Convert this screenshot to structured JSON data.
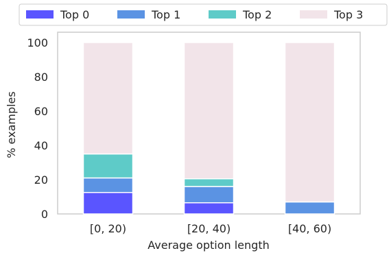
{
  "chart_data": {
    "type": "bar",
    "stacked": true,
    "categories": [
      "[0, 20)",
      "[20, 40)",
      "[40, 60)"
    ],
    "series": [
      {
        "name": "Top 0",
        "color": "#5a55ff",
        "values": [
          12.5,
          6.5,
          0
        ]
      },
      {
        "name": "Top 1",
        "color": "#5b93e3",
        "values": [
          8.5,
          9.5,
          7
        ]
      },
      {
        "name": "Top 2",
        "color": "#5ecbc8",
        "values": [
          14,
          4.5,
          0
        ]
      },
      {
        "name": "Top 3",
        "color": "#f2e4e9",
        "values": [
          65,
          79.5,
          93
        ]
      }
    ],
    "xlabel": "Average option length",
    "ylabel": "% examples",
    "ylim": [
      0,
      100
    ],
    "yticks": [
      0,
      20,
      40,
      60,
      80,
      100
    ],
    "grid": false,
    "legend_position": "top"
  }
}
